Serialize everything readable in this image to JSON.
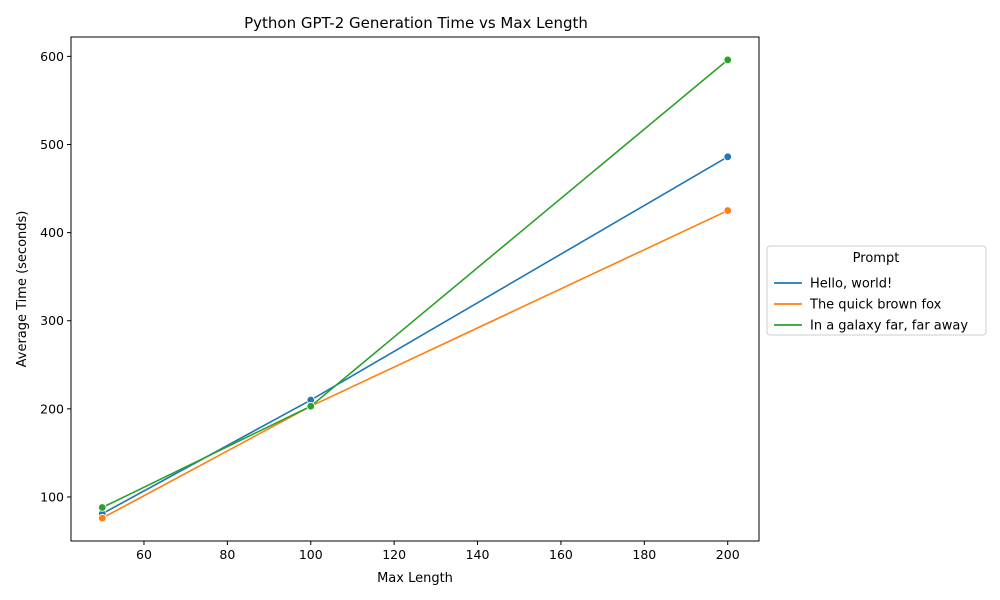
{
  "chart_data": {
    "type": "line",
    "title": "Python GPT-2 Generation Time vs Max Length",
    "xlabel": "Max Length",
    "ylabel": "Average Time (seconds)",
    "x": [
      50,
      100,
      200
    ],
    "xlim": [
      42.5,
      207.5
    ],
    "ylim": [
      50,
      622
    ],
    "xticks": [
      60,
      80,
      100,
      120,
      140,
      160,
      180,
      200
    ],
    "yticks": [
      100,
      200,
      300,
      400,
      500,
      600
    ],
    "grid": false,
    "legend": {
      "title": "Prompt",
      "placement": "right, outside plot"
    },
    "series": [
      {
        "name": "Hello, world!",
        "color": "#1f77b4",
        "values": [
          81,
          210,
          486
        ]
      },
      {
        "name": "The quick brown fox",
        "color": "#ff7f0e",
        "values": [
          76,
          203,
          425
        ]
      },
      {
        "name": "In a galaxy far, far away",
        "color": "#2ca02c",
        "values": [
          88,
          203,
          596
        ]
      }
    ]
  }
}
